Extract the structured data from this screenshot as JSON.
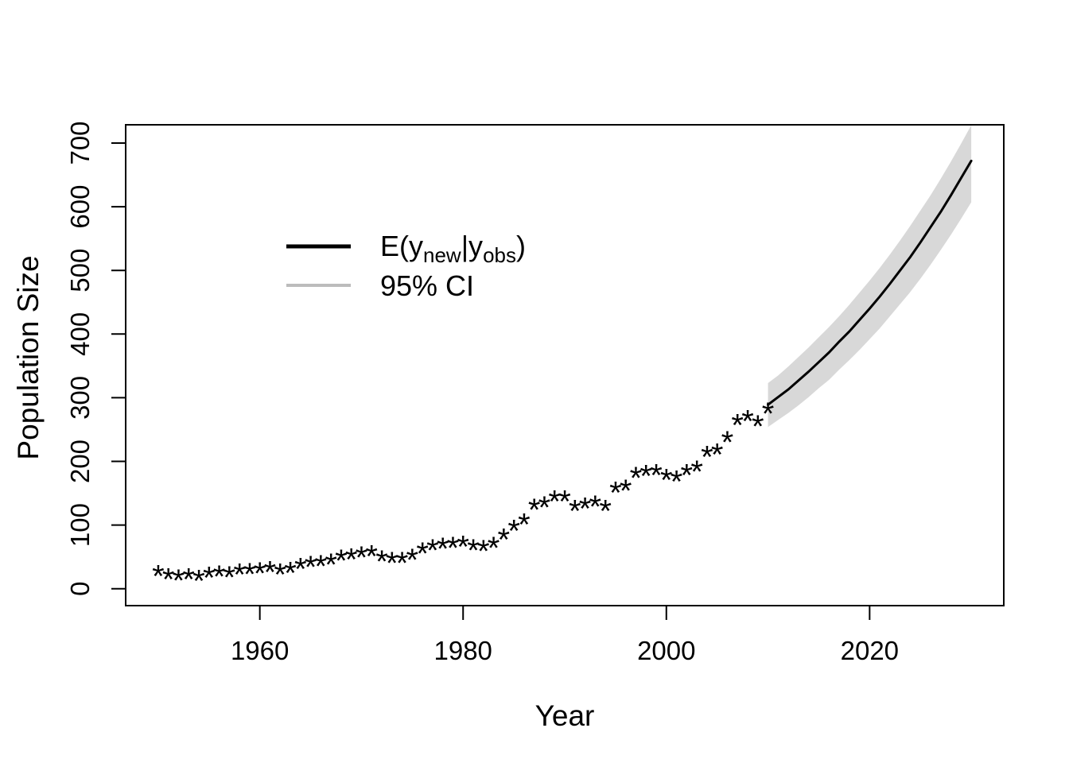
{
  "chart_data": {
    "type": "scatter",
    "title": "",
    "xlabel": "Year",
    "ylabel": "Population Size",
    "xlim": [
      1946.8,
      2033.2
    ],
    "ylim": [
      -26.6,
      728.7
    ],
    "x_ticks": [
      1960,
      1980,
      2000,
      2020
    ],
    "y_ticks": [
      0,
      100,
      200,
      300,
      400,
      500,
      600,
      700
    ],
    "grid": false,
    "legend_position": "upper-left-inside",
    "colors": {
      "observed": "#000000",
      "prediction_line": "#000000",
      "ci_band": "#d8d8d8",
      "ci_legend_swatch": "#bcbcbc"
    },
    "observed": {
      "marker": "*",
      "years": [
        1950,
        1951,
        1952,
        1953,
        1954,
        1955,
        1956,
        1957,
        1958,
        1959,
        1960,
        1961,
        1962,
        1963,
        1964,
        1965,
        1966,
        1967,
        1968,
        1969,
        1970,
        1971,
        1972,
        1973,
        1974,
        1975,
        1976,
        1977,
        1978,
        1979,
        1980,
        1981,
        1982,
        1983,
        1984,
        1985,
        1986,
        1987,
        1988,
        1989,
        1990,
        1991,
        1992,
        1993,
        1994,
        1995,
        1996,
        1997,
        1998,
        1999,
        2000,
        2001,
        2002,
        2003,
        2004,
        2005,
        2006,
        2007,
        2008,
        2009,
        2010
      ],
      "values": [
        28,
        23,
        21,
        23,
        20,
        25,
        27,
        26,
        30,
        31,
        32,
        34,
        30,
        33,
        39,
        42,
        43,
        46,
        52,
        54,
        57,
        59,
        51,
        48,
        48,
        53,
        63,
        68,
        71,
        72,
        74,
        68,
        67,
        72,
        85,
        99,
        109,
        132,
        136,
        145,
        145,
        130,
        134,
        137,
        130,
        159,
        162,
        182,
        185,
        186,
        179,
        176,
        186,
        192,
        215,
        219,
        238,
        265,
        271,
        263,
        283
      ]
    },
    "prediction": {
      "years": [
        2010,
        2011,
        2012,
        2013,
        2014,
        2015,
        2016,
        2017,
        2018,
        2019,
        2020,
        2021,
        2022,
        2023,
        2024,
        2025,
        2026,
        2027,
        2028,
        2029,
        2030
      ],
      "mean": [
        289,
        301,
        313,
        327,
        341,
        356,
        371,
        388,
        404,
        422,
        440,
        459,
        479,
        500,
        521,
        544,
        568,
        592,
        618,
        645,
        672
      ],
      "lower_95": [
        254,
        265,
        276,
        288,
        301,
        315,
        328,
        344,
        359,
        375,
        392,
        409,
        428,
        447,
        466,
        487,
        509,
        532,
        556,
        581,
        607
      ],
      "upper_95": [
        323,
        335,
        349,
        364,
        379,
        395,
        411,
        428,
        446,
        465,
        484,
        504,
        525,
        547,
        570,
        594,
        618,
        644,
        671,
        699,
        728
      ]
    },
    "legend": {
      "prediction": {
        "p1": "E(y",
        "sub1": "new",
        "p2": "|y",
        "sub2": "obs",
        "p3": ")"
      },
      "ci": {
        "label": "95% CI"
      }
    }
  }
}
